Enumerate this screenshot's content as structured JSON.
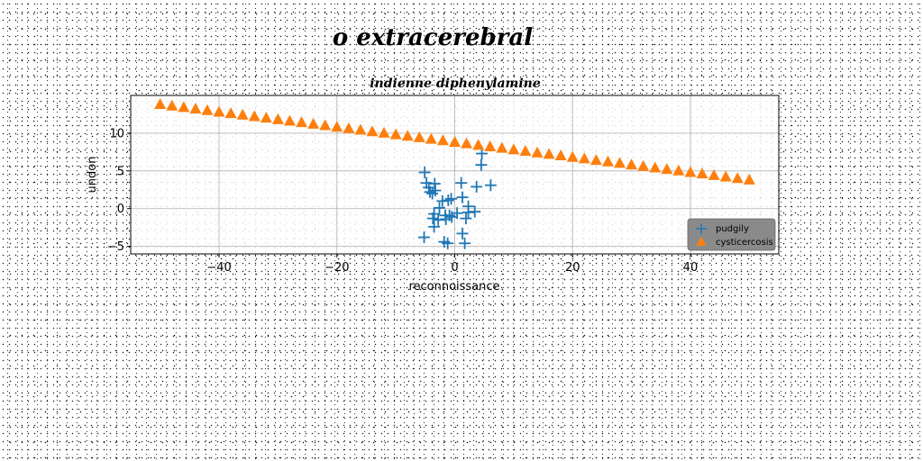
{
  "chart_data": {
    "type": "scatter",
    "title": "o extracerebral",
    "subtitle": "indienne diphenylamine",
    "xlabel": "reconnoissance",
    "ylabel": "undon",
    "xlim": [
      -55,
      55
    ],
    "ylim": [
      -6,
      15
    ],
    "xticks": [
      -40,
      -20,
      0,
      20,
      40
    ],
    "yticks": [
      -5,
      0,
      5,
      10
    ],
    "xtick_labels": [
      "−40",
      "−20",
      "0",
      "20",
      "40"
    ],
    "ytick_labels": [
      "−5",
      "0",
      "5",
      "10"
    ],
    "grid": true,
    "legend": {
      "position": "lower-right"
    },
    "series": [
      {
        "name": "pudgily",
        "marker": "plus",
        "color": "#1f77b4",
        "points": [
          [
            -5.1,
            4.8
          ],
          [
            -4.8,
            3.4
          ],
          [
            -4.4,
            2.8
          ],
          [
            -4.2,
            2.2
          ],
          [
            -3.8,
            2.0
          ],
          [
            -3.4,
            3.3
          ],
          [
            -3.3,
            2.4
          ],
          [
            -3.5,
            -0.7
          ],
          [
            -3.7,
            -1.3
          ],
          [
            -3.5,
            -2.4
          ],
          [
            -2.8,
            -1.5
          ],
          [
            -2.6,
            0.1
          ],
          [
            -2.1,
            1.0
          ],
          [
            -1.6,
            -0.9
          ],
          [
            -1.5,
            -1.4
          ],
          [
            -1.8,
            -4.4
          ],
          [
            -1.2,
            -4.6
          ],
          [
            -0.9,
            -0.9
          ],
          [
            -1.1,
            1.1
          ],
          [
            -0.6,
            1.3
          ],
          [
            -0.5,
            -1.1
          ],
          [
            0.4,
            -0.6
          ],
          [
            1.1,
            3.4
          ],
          [
            1.3,
            1.5
          ],
          [
            1.3,
            -3.3
          ],
          [
            1.7,
            -4.6
          ],
          [
            1.9,
            -1.3
          ],
          [
            2.3,
            -0.5
          ],
          [
            2.3,
            0.3
          ],
          [
            3.7,
            2.9
          ],
          [
            3.4,
            -0.4
          ],
          [
            4.5,
            5.8
          ],
          [
            4.6,
            7.3
          ],
          [
            6.1,
            3.1
          ],
          [
            -5.2,
            -3.8
          ]
        ]
      },
      {
        "name": "cysticercosis",
        "marker": "triangle",
        "color": "#ff7f0e",
        "x_start": -50,
        "x_end": 50,
        "count": 51,
        "y_start": 13.8,
        "y_end": 3.8
      }
    ]
  }
}
